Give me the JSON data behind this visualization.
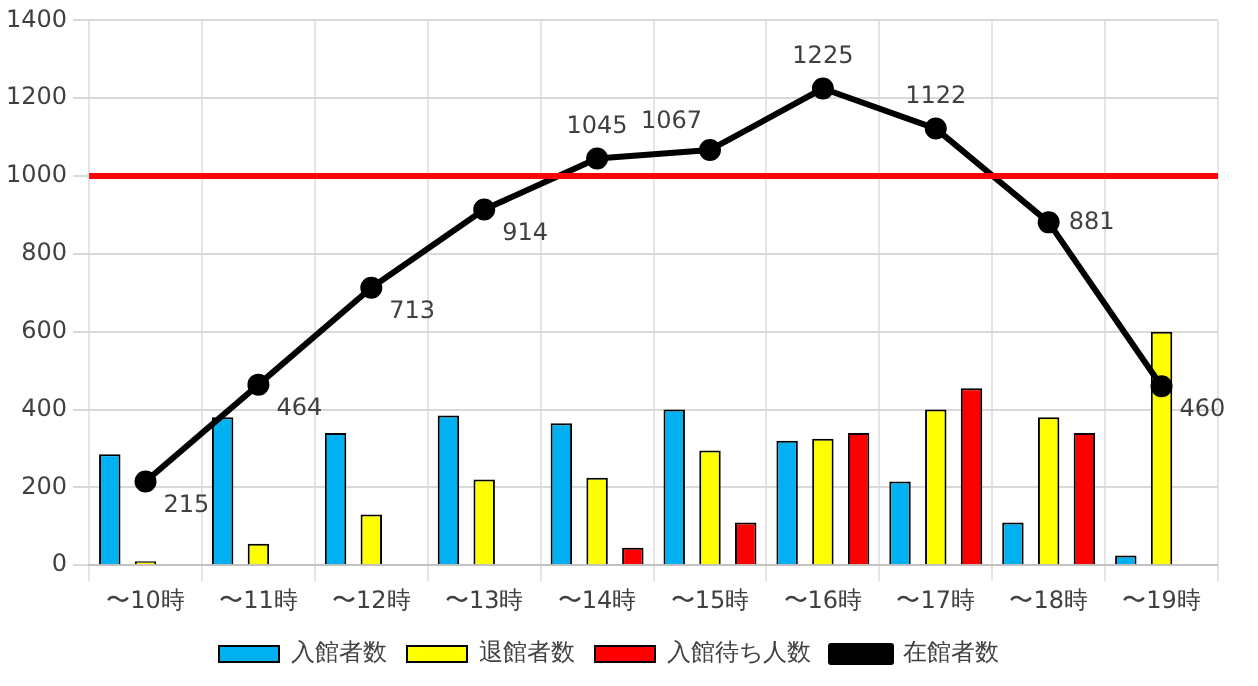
{
  "chart_data": {
    "type": "bar",
    "categories": [
      "〜10時",
      "〜11時",
      "〜12時",
      "〜13時",
      "〜14時",
      "〜15時",
      "〜16時",
      "〜17時",
      "〜18時",
      "〜19時"
    ],
    "series": [
      {
        "name": "入館者数",
        "color": "#00b0f0",
        "values": [
          285,
          380,
          340,
          385,
          365,
          400,
          320,
          215,
          110,
          25
        ]
      },
      {
        "name": "退館者数",
        "color": "#ffff00",
        "values": [
          10,
          55,
          130,
          220,
          225,
          295,
          325,
          400,
          380,
          600
        ]
      },
      {
        "name": "入館待ち人数",
        "color": "#ff0000",
        "values": [
          0,
          0,
          0,
          0,
          45,
          110,
          340,
          455,
          340,
          0
        ]
      },
      {
        "name": "在館者数",
        "type": "line",
        "color": "#000000",
        "marker": "circle",
        "values": [
          215,
          464,
          713,
          914,
          1045,
          1067,
          1225,
          1122,
          881,
          460
        ],
        "value_labels": [
          "215",
          "464",
          "713",
          "914",
          "1045",
          "1067",
          "1225",
          "1122",
          "881",
          "460"
        ]
      }
    ],
    "ylim": [
      0,
      1400
    ],
    "yticks": [
      0,
      200,
      400,
      600,
      800,
      1000,
      1200,
      1400
    ],
    "grid": true,
    "legend": "bottom",
    "ref_lines": [
      {
        "axis": "y",
        "value": 1000,
        "color": "#ff0000"
      }
    ]
  }
}
